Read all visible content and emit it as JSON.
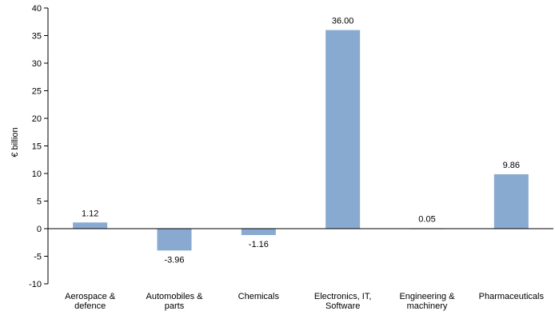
{
  "chart_data": {
    "type": "bar",
    "title": "",
    "xlabel": "",
    "ylabel": "€ billion",
    "categories": [
      [
        "Aerospace &",
        "defence"
      ],
      [
        "Automobiles &",
        "parts"
      ],
      [
        "Chemicals"
      ],
      [
        "Electronics, IT,",
        "Software"
      ],
      [
        "Engineering &",
        "machinery"
      ],
      [
        "Pharmaceuticals"
      ]
    ],
    "values": [
      1.12,
      -3.96,
      -1.16,
      36.0,
      0.05,
      9.86
    ],
    "value_labels": [
      "1.12",
      "-3.96",
      "-1.16",
      "36.00",
      "0.05",
      "9.86"
    ],
    "ylim": [
      -10,
      40
    ],
    "yticks": [
      -10,
      -5,
      0,
      5,
      10,
      15,
      20,
      25,
      30,
      35,
      40
    ],
    "grid": false,
    "legend": "none",
    "bar_color": "#88aad0",
    "axis_color": "#000000"
  }
}
